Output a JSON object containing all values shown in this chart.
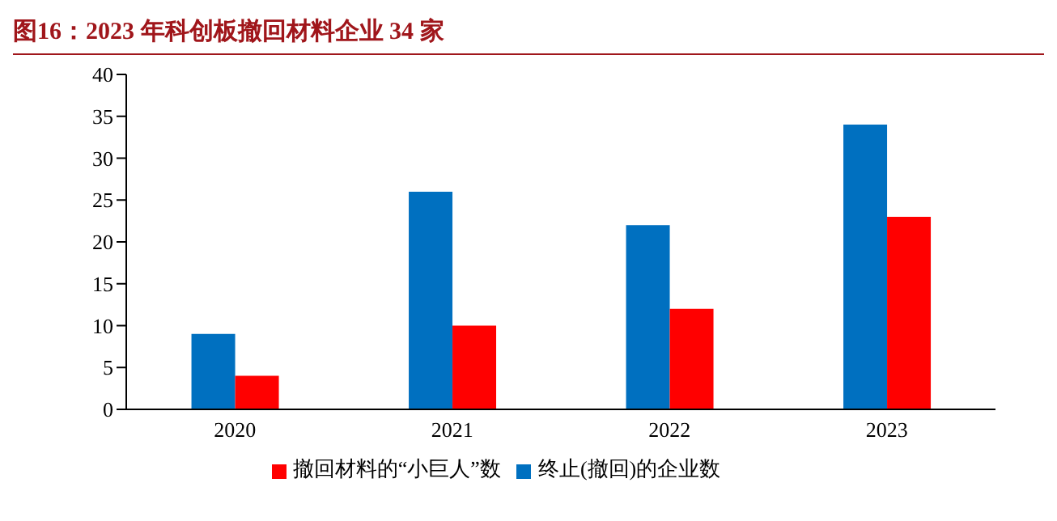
{
  "chart_data": {
    "type": "bar",
    "title": "图16：2023 年科创板撤回材料企业 34 家",
    "categories": [
      "2020",
      "2021",
      "2022",
      "2023"
    ],
    "series": [
      {
        "name": "终止(撤回)的企业数",
        "color": "#0070c0",
        "values": [
          9,
          26,
          22,
          34
        ]
      },
      {
        "name": "撤回材料的“小巨人”数",
        "color": "#ff0000",
        "values": [
          4,
          10,
          12,
          23
        ]
      }
    ],
    "ylim": [
      0,
      40
    ],
    "yticks": [
      0,
      5,
      10,
      15,
      20,
      25,
      30,
      35,
      40
    ],
    "grid": false,
    "legend": "bottom"
  }
}
